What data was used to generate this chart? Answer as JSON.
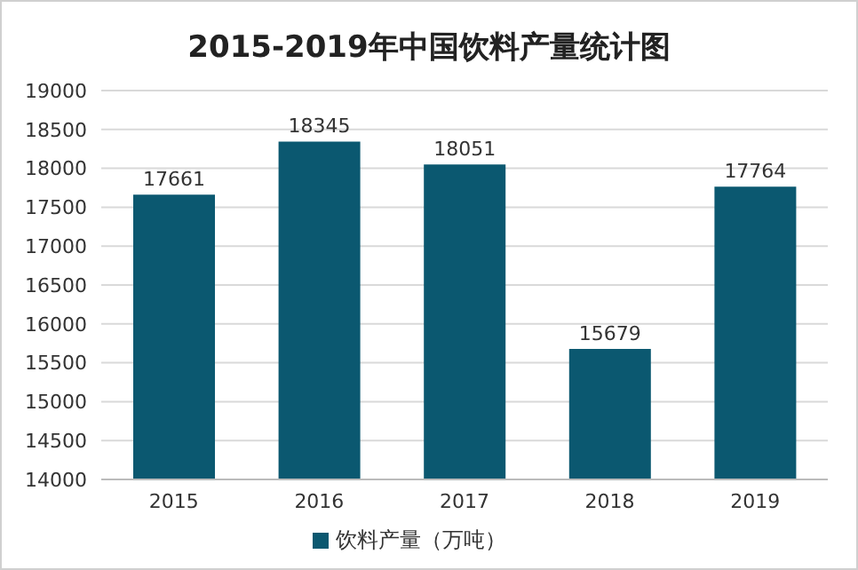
{
  "chart_data": {
    "type": "bar",
    "title": "2015-2019年中国饮料产量统计图",
    "categories": [
      "2015",
      "2016",
      "2017",
      "2018",
      "2019"
    ],
    "series": [
      {
        "name": "饮料产量（万吨）",
        "color": "#0b5870",
        "values": [
          17661,
          18345,
          18051,
          15679,
          17764
        ]
      }
    ],
    "ylim": [
      14000,
      19000
    ],
    "yticks": [
      14000,
      14500,
      15000,
      15500,
      16000,
      16500,
      17000,
      17500,
      18000,
      18500,
      19000
    ],
    "grid": "y",
    "legend": "bottom",
    "data_labels": true
  }
}
